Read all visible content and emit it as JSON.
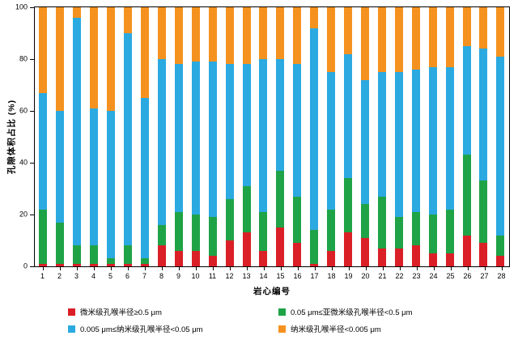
{
  "y_axis": {
    "label": "孔隙体积占比 (%)",
    "ticks": [
      0,
      20,
      40,
      60,
      80,
      100
    ],
    "max": 100
  },
  "x_axis": {
    "label": "岩心编号"
  },
  "chart_data": {
    "type": "bar",
    "stacked": true,
    "normalized_percent": true,
    "title": "",
    "xlabel": "岩心编号",
    "ylabel": "孔隙体积占比 (%)",
    "ylim": [
      0,
      100
    ],
    "grid": false,
    "legend_position": "bottom",
    "categories": [
      "1",
      "2",
      "3",
      "4",
      "5",
      "6",
      "7",
      "8",
      "9",
      "10",
      "11",
      "12",
      "13",
      "14",
      "15",
      "16",
      "17",
      "18",
      "19",
      "20",
      "21",
      "22",
      "23",
      "24",
      "25",
      "26",
      "27",
      "28"
    ],
    "series": [
      {
        "name": "微米级孔喉半径≥0.5 μm",
        "color": "#da1f27",
        "values": [
          1,
          1,
          1,
          1,
          1,
          1,
          1,
          8,
          6,
          6,
          4,
          10,
          13,
          6,
          15,
          9,
          1,
          6,
          13,
          11,
          7,
          7,
          8,
          5,
          5,
          12,
          9,
          4
        ]
      },
      {
        "name": "0.05 μm≤亚微米级孔喉半径<0.5 μm",
        "color": "#1fa347",
        "values": [
          21,
          16,
          7,
          7,
          2,
          7,
          2,
          8,
          15,
          14,
          15,
          16,
          18,
          15,
          22,
          18,
          13,
          16,
          21,
          13,
          20,
          12,
          13,
          15,
          17,
          31,
          24,
          8
        ]
      },
      {
        "name": "0.005 μm≤纳米级孔喉半径<0.05 μm",
        "color": "#2ba9e1",
        "values": [
          45,
          43,
          88,
          53,
          57,
          82,
          62,
          64,
          57,
          59,
          60,
          52,
          47,
          59,
          43,
          51,
          78,
          53,
          48,
          48,
          48,
          56,
          55,
          57,
          55,
          42,
          51,
          69
        ]
      },
      {
        "name": "纳米级孔喉半径<0.005 μm",
        "color": "#f5921f",
        "values": [
          33,
          40,
          4,
          39,
          40,
          10,
          35,
          20,
          22,
          21,
          21,
          22,
          22,
          20,
          20,
          22,
          8,
          25,
          18,
          28,
          25,
          25,
          24,
          23,
          23,
          15,
          16,
          19
        ]
      }
    ]
  }
}
